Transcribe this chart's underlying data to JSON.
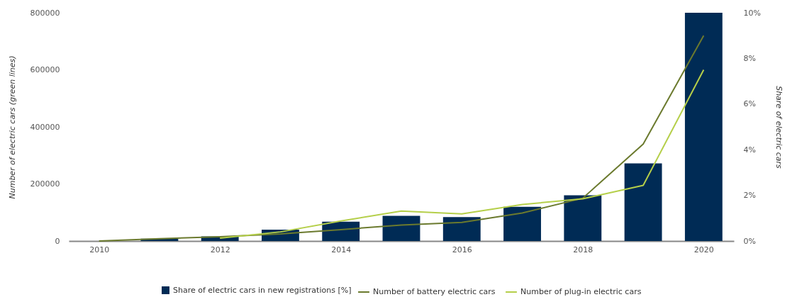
{
  "chart_data": {
    "type": "bar",
    "ylabel": "Number of electric cars (green lines)",
    "y2label": "Share of electric cars",
    "x": [
      2010,
      2011,
      2012,
      2013,
      2014,
      2015,
      2016,
      2017,
      2018,
      2019,
      2020
    ],
    "xlim": [
      2009.5,
      2020.5
    ],
    "xticks": [
      2010,
      2012,
      2014,
      2016,
      2018,
      2020
    ],
    "ylim": [
      0,
      800000
    ],
    "yticks": [
      0,
      200000,
      400000,
      600000,
      800000
    ],
    "y2lim": [
      0,
      10
    ],
    "y2ticks": [
      {
        "value": 0,
        "label": "0%"
      },
      {
        "value": 2,
        "label": "2%"
      },
      {
        "value": 4,
        "label": "4%"
      },
      {
        "value": 6,
        "label": "6%"
      },
      {
        "value": 8,
        "label": "8%"
      },
      {
        "value": 10,
        "label": "10%"
      }
    ],
    "series": [
      {
        "name": "Share of electric cars in new registrations [%]",
        "axis": "y2",
        "color": "#002b55",
        "values": [
          0,
          0.1,
          0.2,
          0.5,
          0.85,
          1.1,
          1.05,
          1.5,
          2.0,
          3.4,
          10.0
        ]
      },
      {
        "name": "Number of battery electric cars",
        "type": "line",
        "color": "#6b7a2e",
        "values": [
          0,
          8000,
          15000,
          25000,
          40000,
          56000,
          65000,
          98000,
          150000,
          340000,
          720000
        ]
      },
      {
        "name": "Number of plug-in electric cars",
        "type": "line",
        "color": "#b5cf4a",
        "values": [
          null,
          null,
          10000,
          32000,
          70000,
          105000,
          95000,
          128000,
          148000,
          195000,
          600000
        ]
      }
    ],
    "grid": false,
    "legend": "bottom"
  }
}
